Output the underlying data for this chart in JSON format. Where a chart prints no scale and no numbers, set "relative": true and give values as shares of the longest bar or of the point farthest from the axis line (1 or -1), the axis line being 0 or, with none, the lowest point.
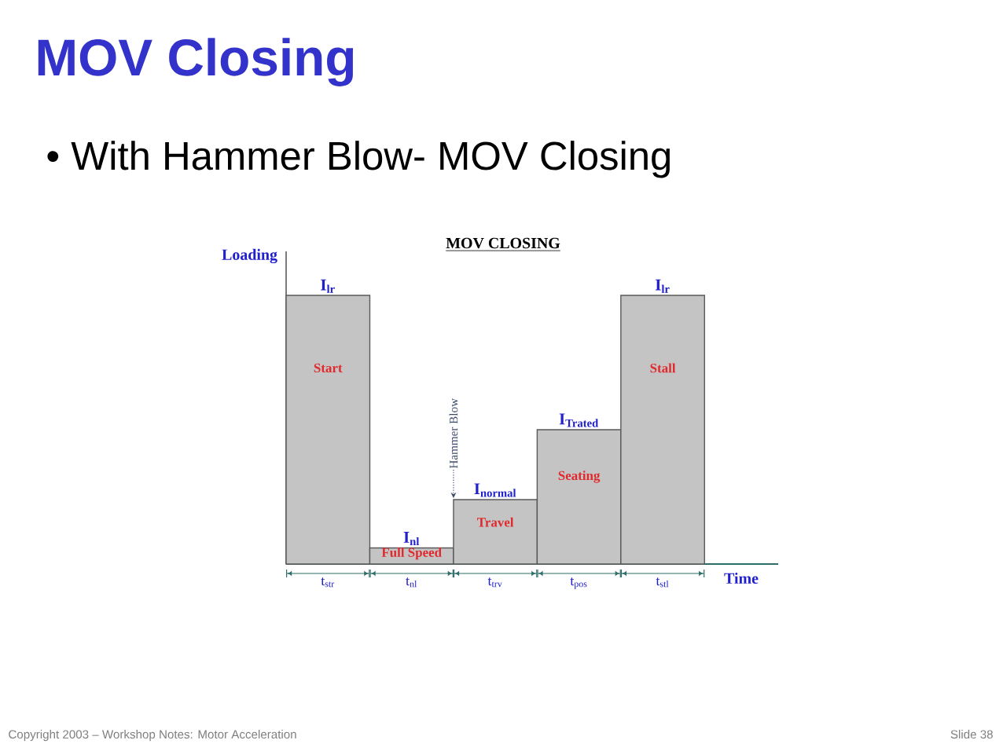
{
  "chart_data": {
    "type": "bar",
    "title": "MOV Closing",
    "subtitle": "• With Hammer Blow- MOV Closing",
    "xlabel": "Time",
    "ylabel": "Loading",
    "categories": [
      "t$_{str}$",
      "t$_{nl}$",
      "t$_{trv}$",
      "t$_{pos}$",
      "t$_{stl}$"
    ],
    "values": [
      1,
      0.06,
      0.24,
      0.5,
      1
    ],
    "relative": true,
    "color": "#c4c4c4",
    "annotations": [
      "MOV CLOSING",
      "Start",
      "Full Speed",
      "Travel",
      "Seating",
      "Stall",
      "Hammer Blow",
      "Copyright 2003 – Workshop Notes: Motor Acceleration",
      "Slide 38",
      {
        "text": "I$_{lr}$",
        "x": "t$_{str}$",
        "y": 1
      },
      {
        "text": "I$_{nl}$",
        "x": "t$_{nl}$",
        "y": 0.06
      },
      {
        "text": "I$_{normal}$",
        "x": "t$_{trv}$",
        "y": 0.24
      },
      {
        "text": "I$_{Trated}$",
        "x": "t$_{pos}$",
        "y": 0.5
      },
      {
        "text": "I$_{lr}$",
        "x": "t$_{stl}$",
        "y": 1
      }
    ]
  }
}
